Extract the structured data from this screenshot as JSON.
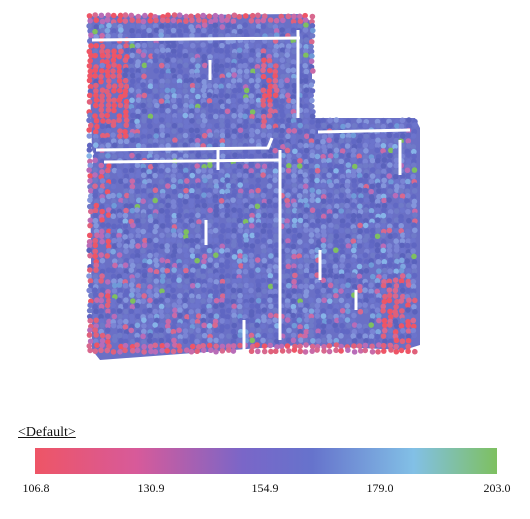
{
  "legend": {
    "title": "<Default>",
    "ticks": [
      "106.8",
      "130.9",
      "154.9",
      "179.0",
      "203.0"
    ],
    "min": 106.8,
    "max": 203.0,
    "colors": [
      "#ee5566",
      "#d75a9a",
      "#7a66c8",
      "#6673cc",
      "#82c0e6",
      "#7ec060"
    ]
  },
  "map": {
    "description_fields": [],
    "dominant_range": "154.9",
    "low_color": "#ee5566",
    "mid_color": "#6670c8",
    "high_color": "#7ec060"
  }
}
